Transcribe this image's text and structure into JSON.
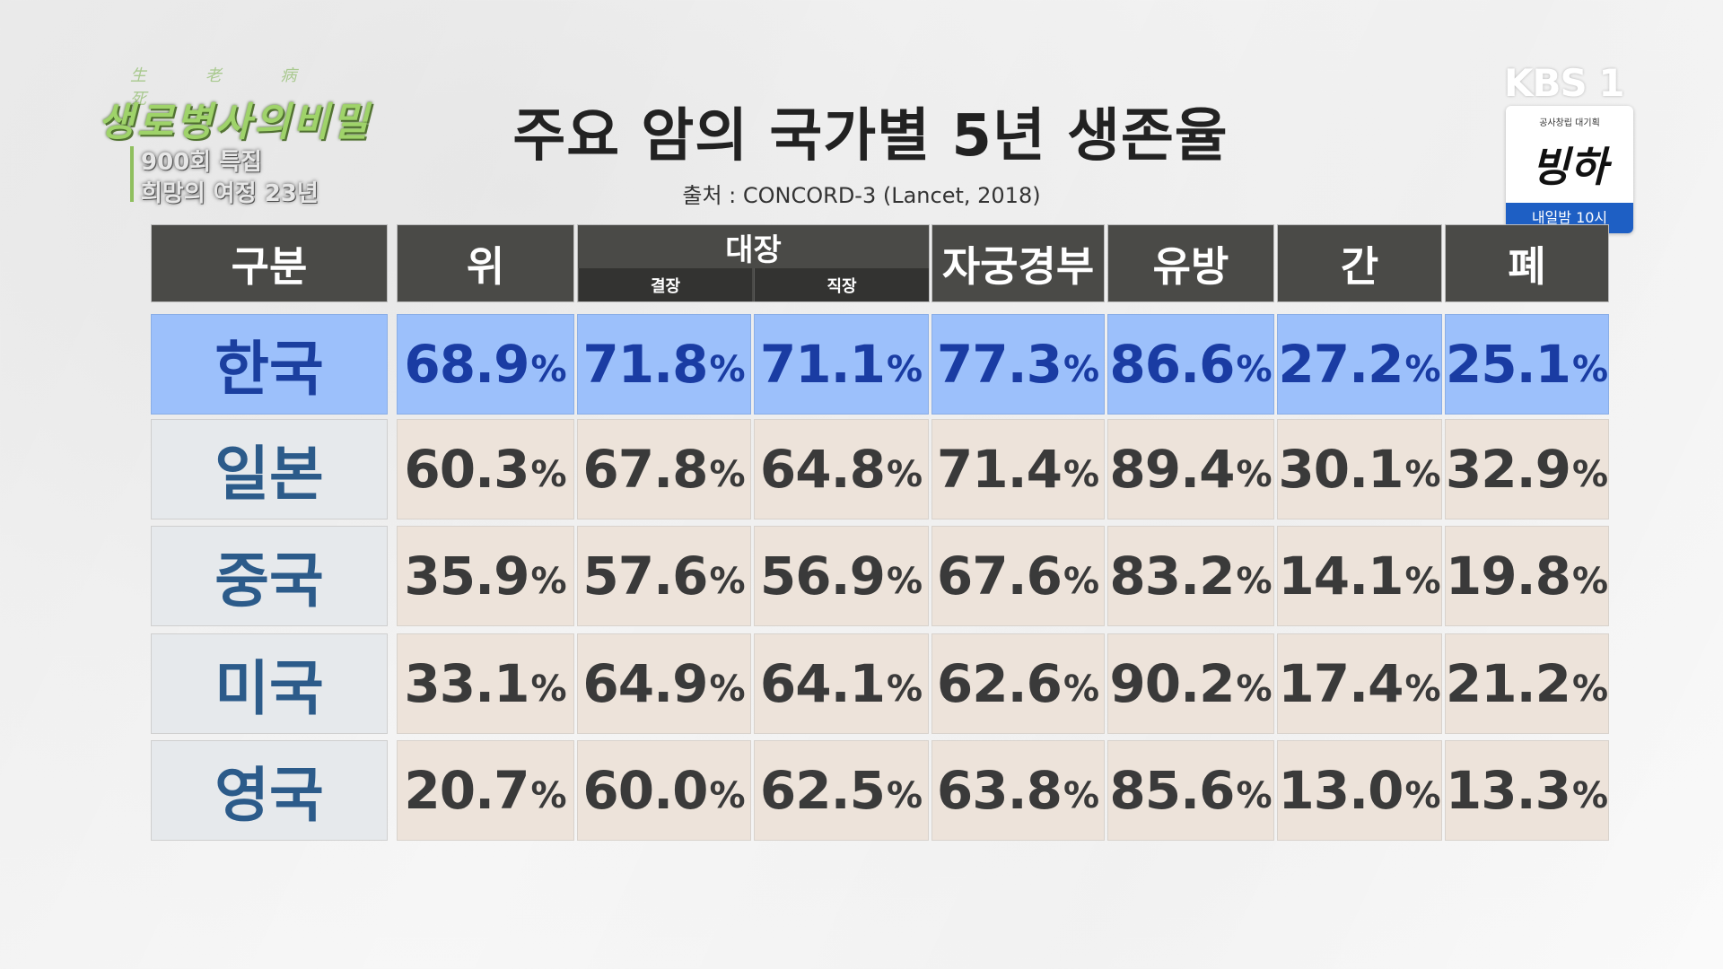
{
  "program": {
    "small_text": "生 老 病 死",
    "title": "생로병사의비밀",
    "line1": "900회 특집",
    "line2": "희망의 여정 23년"
  },
  "broadcaster": {
    "logo": "KBS 1",
    "promo_top": "공사창립 대기획",
    "promo_title": "빙하",
    "promo_time": "내일밤 10시"
  },
  "title": "주요 암의 국가별 5년 생존율",
  "source": "출처 : CONCORD-3 (Lancet, 2018)",
  "table": {
    "header_label": "구분",
    "col_stomach": "위",
    "col_colorectal": "대장",
    "col_colon": "결장",
    "col_rectum": "직장",
    "col_cervix": "자궁경부",
    "col_breast": "유방",
    "col_liver": "간",
    "col_lung": "폐",
    "percent_sign": "%",
    "rows": [
      {
        "country": "한국",
        "values": [
          "68.9",
          "71.8",
          "71.1",
          "77.3",
          "86.6",
          "27.2",
          "25.1"
        ]
      },
      {
        "country": "일본",
        "values": [
          "60.3",
          "67.8",
          "64.8",
          "71.4",
          "89.4",
          "30.1",
          "32.9"
        ]
      },
      {
        "country": "중국",
        "values": [
          "35.9",
          "57.6",
          "56.9",
          "67.6",
          "83.2",
          "14.1",
          "19.8"
        ]
      },
      {
        "country": "미국",
        "values": [
          "33.1",
          "64.9",
          "64.1",
          "62.6",
          "90.2",
          "17.4",
          "21.2"
        ]
      },
      {
        "country": "영국",
        "values": [
          "20.7",
          "60.0",
          "62.5",
          "63.8",
          "85.6",
          "13.0",
          "13.3"
        ]
      }
    ]
  },
  "colors": {
    "highlight": "#9cc0fb",
    "header": "#4a4a47"
  }
}
